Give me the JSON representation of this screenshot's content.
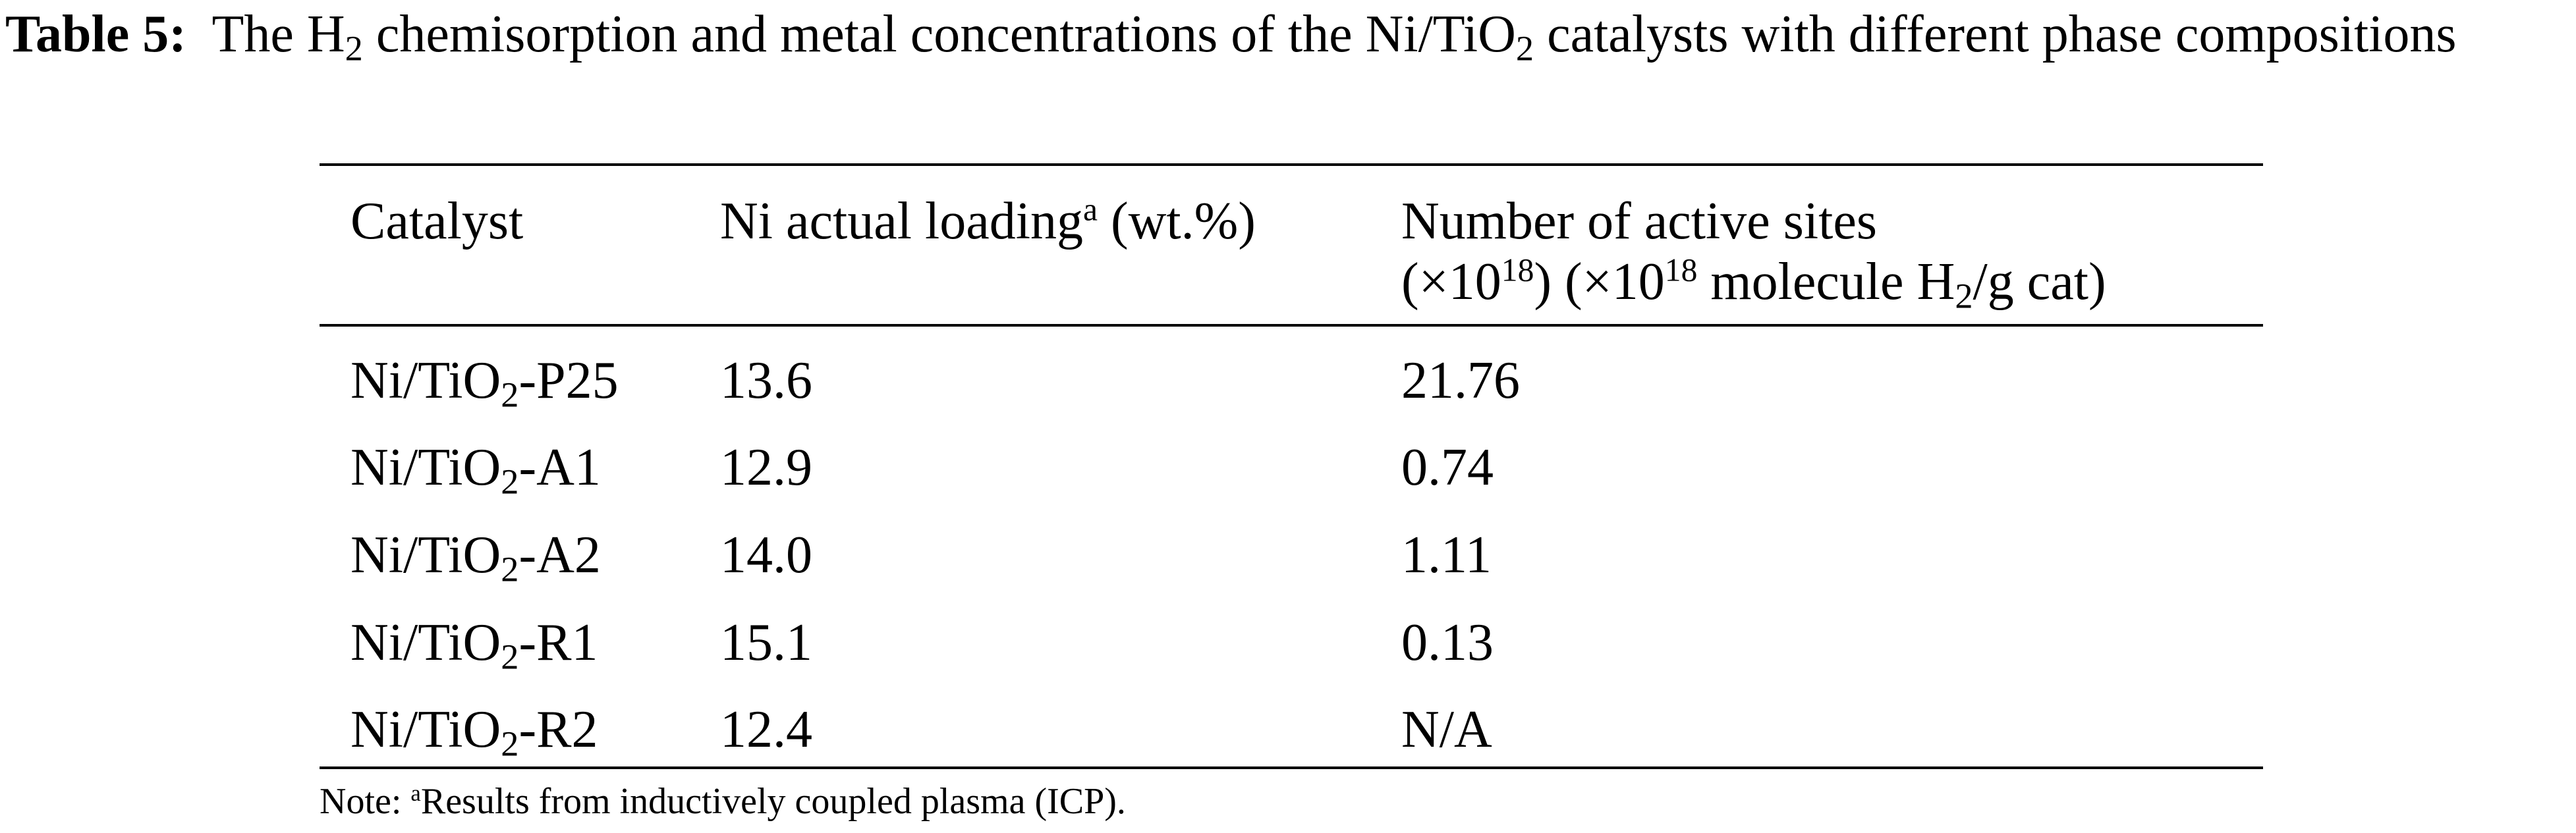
{
  "caption": {
    "label": "Table 5:",
    "text_1": "The H",
    "sub_1": "2",
    "text_2": " chemisorption and metal concentrations of the Ni/TiO",
    "sub_2": "2",
    "text_3": " catalysts with different phase compositions"
  },
  "table": {
    "headers": {
      "catalyst": "Catalyst",
      "loading_text": "Ni actual loading",
      "loading_sup": "a",
      "loading_unit": " (wt.%)",
      "sites_line1": "Number of active sites",
      "sites_l2_a": "(×10",
      "sites_l2_sup1": "18",
      "sites_l2_b": ") (×10",
      "sites_l2_sup2": "18",
      "sites_l2_c": " molecule H",
      "sites_l2_sub": "2",
      "sites_l2_d": "/g cat)"
    },
    "rows": [
      {
        "cat_prefix": "Ni/TiO",
        "cat_sub": "2",
        "cat_suffix": "-P25",
        "loading": "13.6",
        "sites": "21.76"
      },
      {
        "cat_prefix": "Ni/TiO",
        "cat_sub": "2",
        "cat_suffix": "-A1",
        "loading": "12.9",
        "sites": "0.74"
      },
      {
        "cat_prefix": "Ni/TiO",
        "cat_sub": "2",
        "cat_suffix": "-A2",
        "loading": "14.0",
        "sites": "1.11"
      },
      {
        "cat_prefix": "Ni/TiO",
        "cat_sub": "2",
        "cat_suffix": "-R1",
        "loading": "15.1",
        "sites": "0.13"
      },
      {
        "cat_prefix": "Ni/TiO",
        "cat_sub": "2",
        "cat_suffix": "-R2",
        "loading": "12.4",
        "sites": "N/A"
      }
    ]
  },
  "note": {
    "prefix": "Note: ",
    "sup": "a",
    "text": "Results from inductively coupled plasma (ICP)."
  }
}
